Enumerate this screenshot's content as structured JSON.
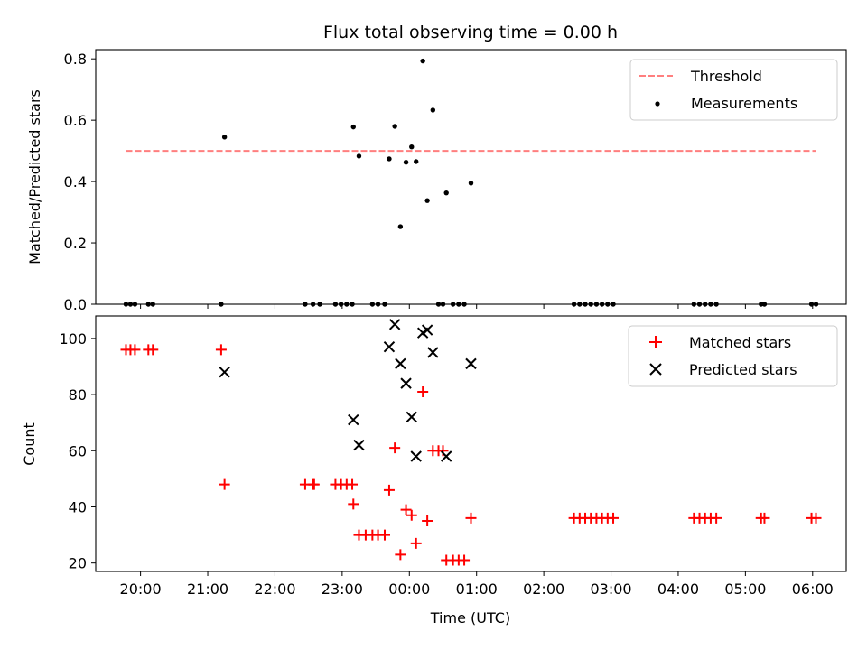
{
  "chart_data": [
    {
      "type": "scatter",
      "title": "Flux total observing time = 0.00 h",
      "xlabel": "",
      "ylabel": "Matched/Predicted stars",
      "ylim": [
        0,
        0.83
      ],
      "yticks": [
        0.0,
        0.2,
        0.4,
        0.6,
        0.8
      ],
      "ytick_labels": [
        "0.0",
        "0.2",
        "0.4",
        "0.6",
        "0.8"
      ],
      "threshold": {
        "name": "Threshold",
        "value": 0.5,
        "x_range": [
          "19:47",
          "06:03"
        ],
        "color": "#ff7f7f",
        "style": "dashed"
      },
      "legend": {
        "placement": "top-right",
        "entries": [
          "Threshold",
          "Measurements"
        ]
      },
      "series": [
        {
          "name": "Measurements",
          "color": "#000000",
          "marker": "dot",
          "points": [
            [
              "19:47",
              0.0
            ],
            [
              "19:51",
              0.0
            ],
            [
              "19:55",
              0.0
            ],
            [
              "20:07",
              0.0
            ],
            [
              "20:11",
              0.0
            ],
            [
              "21:12",
              0.0
            ],
            [
              "21:15",
              0.545
            ],
            [
              "22:27",
              0.0
            ],
            [
              "22:34",
              0.0
            ],
            [
              "22:40",
              0.0
            ],
            [
              "22:54",
              0.0
            ],
            [
              "22:59",
              0.0
            ],
            [
              "23:04",
              0.0
            ],
            [
              "23:09",
              0.0
            ],
            [
              "23:10",
              0.578
            ],
            [
              "23:15",
              0.483
            ],
            [
              "23:27",
              0.0
            ],
            [
              "23:32",
              0.0
            ],
            [
              "23:38",
              0.0
            ],
            [
              "23:42",
              0.474
            ],
            [
              "23:47",
              0.58
            ],
            [
              "23:52",
              0.253
            ],
            [
              "23:57",
              0.463
            ],
            [
              "00:02",
              0.513
            ],
            [
              "00:06",
              0.465
            ],
            [
              "00:12",
              0.793
            ],
            [
              "00:16",
              0.338
            ],
            [
              "00:21",
              0.633
            ],
            [
              "00:26",
              0.0
            ],
            [
              "00:30",
              0.0
            ],
            [
              "00:33",
              0.363
            ],
            [
              "00:39",
              0.0
            ],
            [
              "00:44",
              0.0
            ],
            [
              "00:49",
              0.0
            ],
            [
              "00:55",
              0.395
            ],
            [
              "02:27",
              0.0
            ],
            [
              "02:32",
              0.0
            ],
            [
              "02:37",
              0.0
            ],
            [
              "02:42",
              0.0
            ],
            [
              "02:47",
              0.0
            ],
            [
              "02:52",
              0.0
            ],
            [
              "02:57",
              0.0
            ],
            [
              "03:02",
              0.0
            ],
            [
              "04:14",
              0.0
            ],
            [
              "04:19",
              0.0
            ],
            [
              "04:24",
              0.0
            ],
            [
              "04:29",
              0.0
            ],
            [
              "04:34",
              0.0
            ],
            [
              "05:14",
              0.0
            ],
            [
              "05:17",
              0.0
            ],
            [
              "05:59",
              0.0
            ],
            [
              "06:03",
              0.0
            ]
          ]
        }
      ]
    },
    {
      "type": "scatter",
      "title": "",
      "xlabel": "Time (UTC)",
      "ylabel": "Count",
      "ylim": [
        17,
        108
      ],
      "yticks": [
        20,
        40,
        60,
        80,
        100
      ],
      "ytick_labels": [
        "20",
        "40",
        "60",
        "80",
        "100"
      ],
      "xlim": [
        "19:20",
        "06:30"
      ],
      "xticks": [
        "20:00",
        "21:00",
        "22:00",
        "23:00",
        "00:00",
        "01:00",
        "02:00",
        "03:00",
        "04:00",
        "05:00",
        "06:00"
      ],
      "legend": {
        "placement": "top-right",
        "entries": [
          "Matched stars",
          "Predicted stars"
        ]
      },
      "series": [
        {
          "name": "Matched stars",
          "color": "#ff0000",
          "marker": "plus",
          "points": [
            [
              "19:47",
              96
            ],
            [
              "19:51",
              96
            ],
            [
              "19:55",
              96
            ],
            [
              "20:07",
              96
            ],
            [
              "20:11",
              96
            ],
            [
              "21:12",
              96
            ],
            [
              "21:15",
              48
            ],
            [
              "22:27",
              48
            ],
            [
              "22:34",
              48
            ],
            [
              "22:35",
              48
            ],
            [
              "22:54",
              48
            ],
            [
              "22:59",
              48
            ],
            [
              "23:04",
              48
            ],
            [
              "23:09",
              48
            ],
            [
              "23:10",
              41
            ],
            [
              "23:15",
              30
            ],
            [
              "23:21",
              30
            ],
            [
              "23:27",
              30
            ],
            [
              "23:32",
              30
            ],
            [
              "23:38",
              30
            ],
            [
              "23:42",
              46
            ],
            [
              "23:47",
              61
            ],
            [
              "23:52",
              23
            ],
            [
              "23:57",
              39
            ],
            [
              "00:02",
              37
            ],
            [
              "00:06",
              27
            ],
            [
              "00:12",
              81
            ],
            [
              "00:16",
              35
            ],
            [
              "00:21",
              60
            ],
            [
              "00:26",
              60
            ],
            [
              "00:30",
              60
            ],
            [
              "00:33",
              21
            ],
            [
              "00:39",
              21
            ],
            [
              "00:44",
              21
            ],
            [
              "00:49",
              21
            ],
            [
              "00:55",
              36
            ],
            [
              "02:27",
              36
            ],
            [
              "02:32",
              36
            ],
            [
              "02:37",
              36
            ],
            [
              "02:42",
              36
            ],
            [
              "02:47",
              36
            ],
            [
              "02:52",
              36
            ],
            [
              "02:57",
              36
            ],
            [
              "03:02",
              36
            ],
            [
              "04:14",
              36
            ],
            [
              "04:19",
              36
            ],
            [
              "04:24",
              36
            ],
            [
              "04:29",
              36
            ],
            [
              "04:34",
              36
            ],
            [
              "05:14",
              36
            ],
            [
              "05:17",
              36
            ],
            [
              "05:59",
              36
            ],
            [
              "06:03",
              36
            ]
          ]
        },
        {
          "name": "Predicted stars",
          "color": "#000000",
          "marker": "x",
          "points": [
            [
              "21:15",
              88
            ],
            [
              "23:10",
              71
            ],
            [
              "23:15",
              62
            ],
            [
              "23:42",
              97
            ],
            [
              "23:47",
              105
            ],
            [
              "23:52",
              91
            ],
            [
              "23:57",
              84
            ],
            [
              "00:02",
              72
            ],
            [
              "00:06",
              58
            ],
            [
              "00:12",
              102
            ],
            [
              "00:16",
              103
            ],
            [
              "00:21",
              95
            ],
            [
              "00:33",
              58
            ],
            [
              "00:55",
              91
            ]
          ]
        }
      ]
    }
  ]
}
